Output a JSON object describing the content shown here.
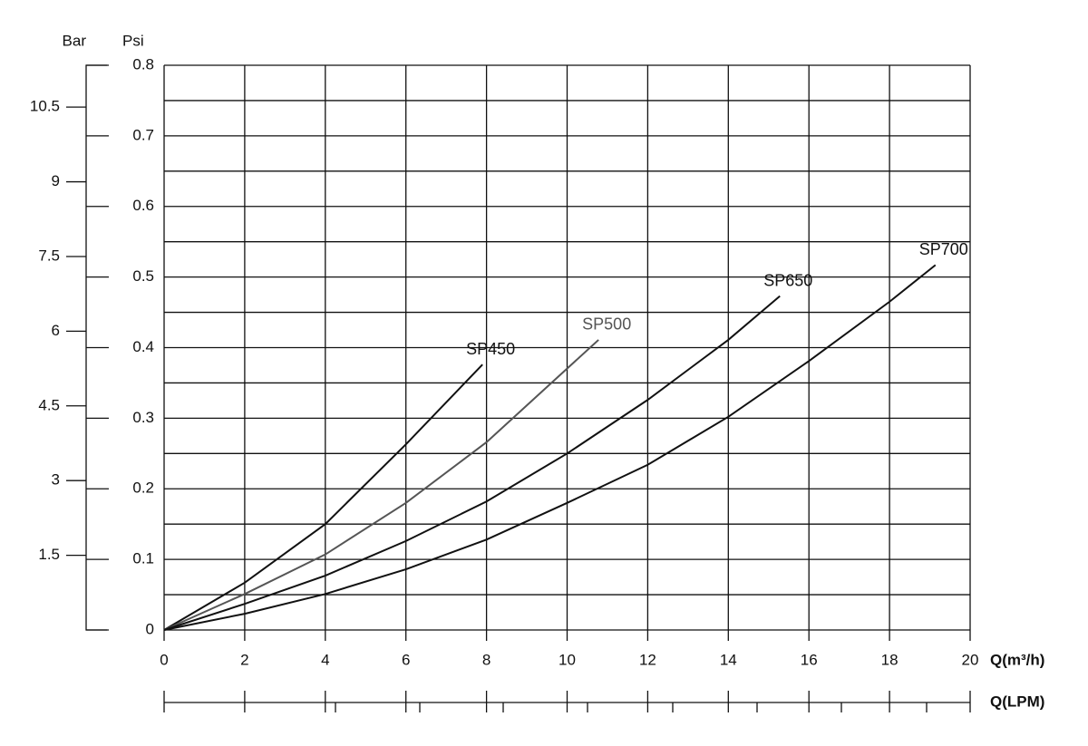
{
  "chart_data": {
    "type": "line",
    "y_label": "Psi",
    "y2_label": "Bar",
    "x_label": "Q(m³/h)",
    "x2_label": "Q(LPM)",
    "xlim": [
      0,
      20
    ],
    "xticks": [
      0,
      2,
      4,
      6,
      8,
      10,
      12,
      14,
      16,
      18,
      20
    ],
    "ylim": [
      0,
      0.8
    ],
    "yticks": [
      0,
      0.1,
      0.2,
      0.3,
      0.4,
      0.5,
      0.6,
      0.7,
      0.8
    ],
    "yminorticks": [
      0.05,
      0.15,
      0.25,
      0.35,
      0.45,
      0.55,
      0.65,
      0.75
    ],
    "y2lim": [
      0,
      11.34
    ],
    "y2ticks": [
      1.5,
      3.0,
      4.5,
      6.0,
      7.5,
      9.0,
      10.5
    ],
    "grid": true,
    "series": [
      {
        "name": "SP450",
        "color": "#111111",
        "x": [
          0,
          2,
          4,
          6,
          7.9
        ],
        "values": [
          0,
          0.067,
          0.15,
          0.263,
          0.376
        ]
      },
      {
        "name": "SP500",
        "color": "#555555",
        "x": [
          0,
          2,
          4,
          6,
          8,
          10.78
        ],
        "values": [
          0,
          0.051,
          0.107,
          0.18,
          0.266,
          0.411
        ]
      },
      {
        "name": "SP650",
        "color": "#111111",
        "x": [
          0,
          2,
          4,
          6,
          8,
          10,
          12,
          14,
          15.28
        ],
        "values": [
          0,
          0.037,
          0.077,
          0.126,
          0.182,
          0.25,
          0.326,
          0.411,
          0.473
        ]
      },
      {
        "name": "SP700",
        "color": "#111111",
        "x": [
          0,
          2,
          4,
          6,
          8,
          10,
          12,
          14,
          16,
          18,
          19.14
        ],
        "values": [
          0,
          0.023,
          0.051,
          0.086,
          0.128,
          0.18,
          0.234,
          0.302,
          0.381,
          0.465,
          0.517
        ]
      }
    ]
  }
}
